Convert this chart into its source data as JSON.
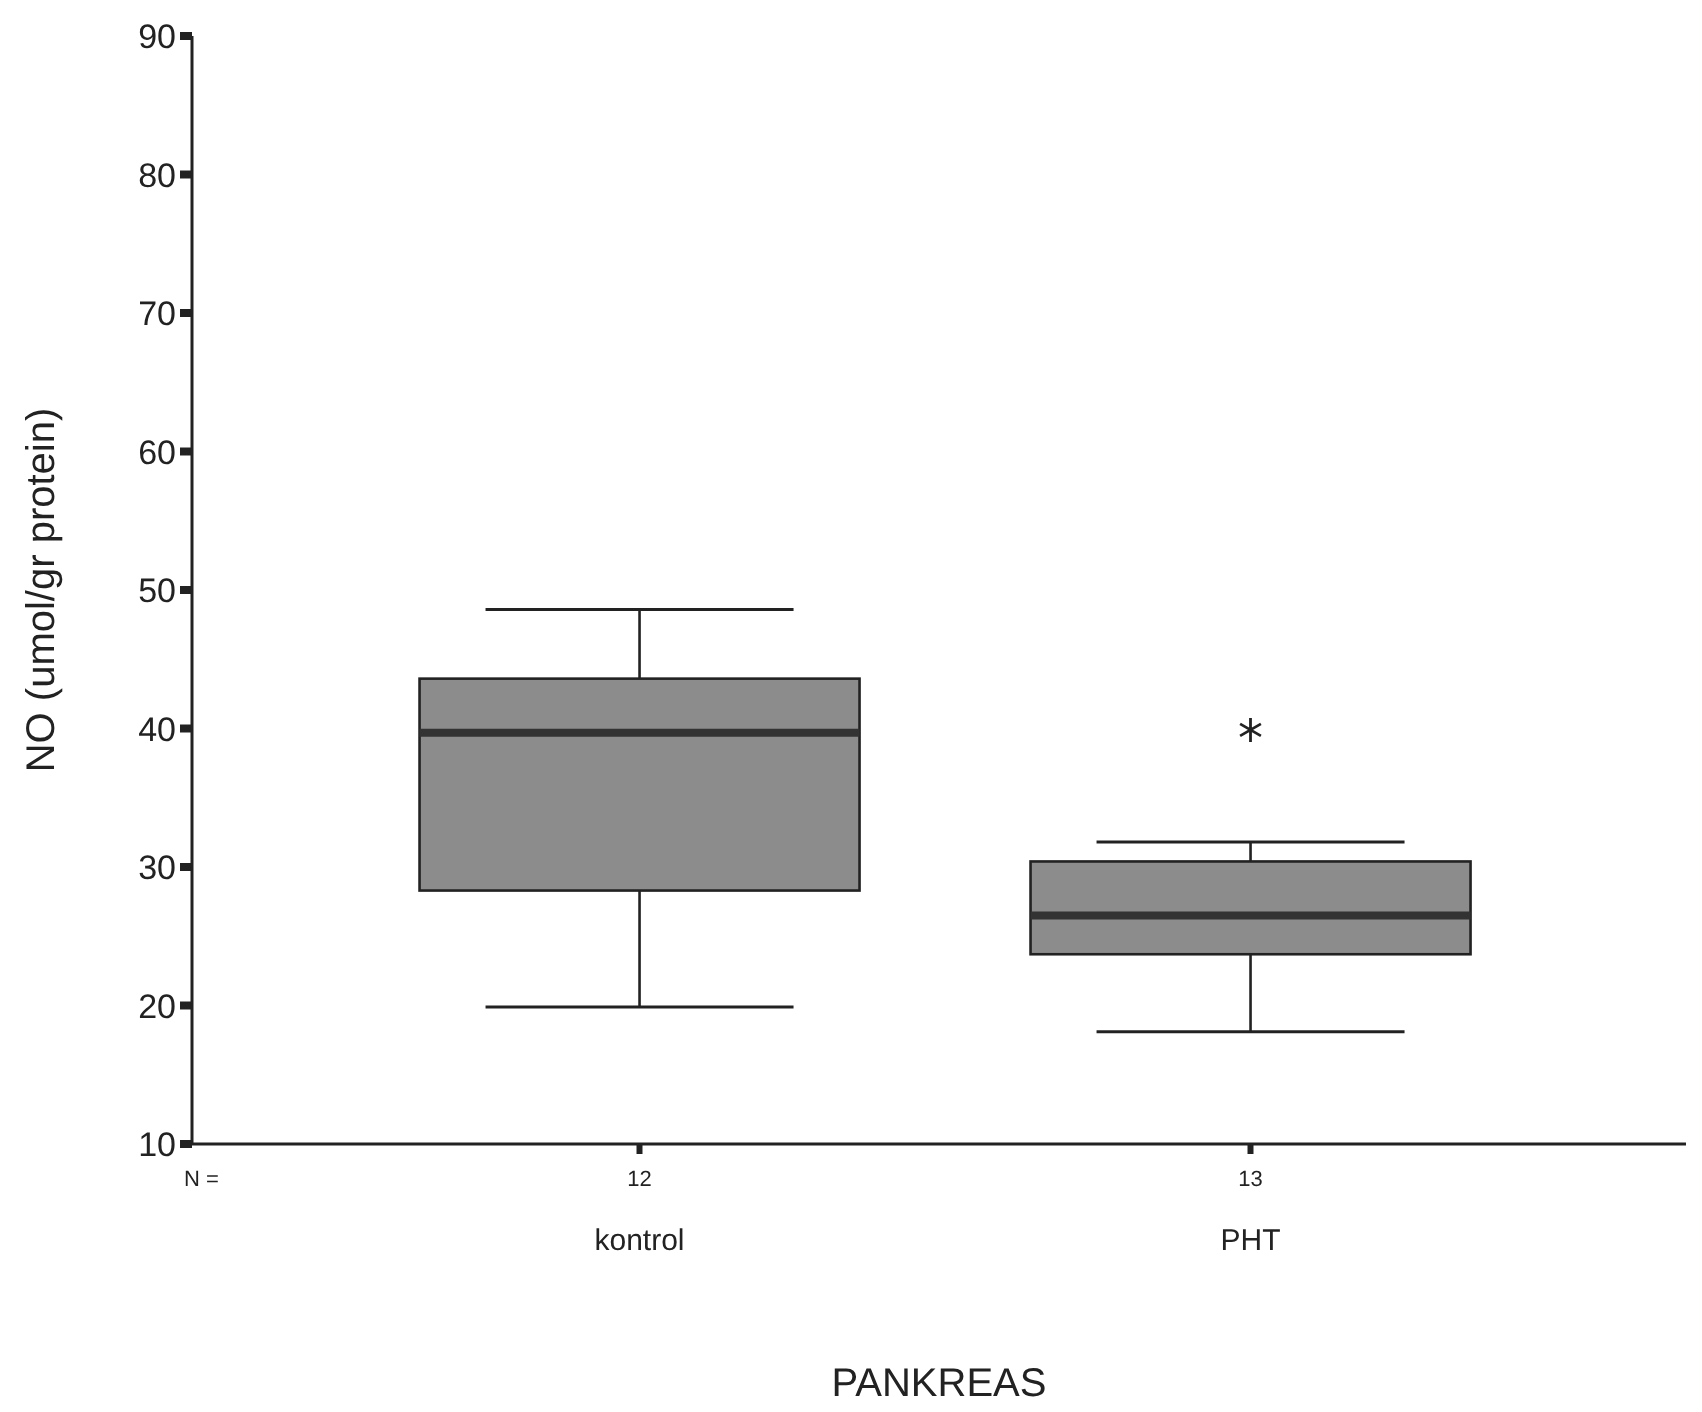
{
  "chart_data": {
    "type": "box",
    "categories": [
      "kontrol",
      "PHT"
    ],
    "xlabel": "PANKREAS",
    "ylabel": "NO (umol/gr protein)",
    "ylim": [
      10,
      90
    ],
    "yticks": [
      10,
      20,
      30,
      40,
      50,
      60,
      70,
      80,
      90
    ],
    "color": "#8c8c8c",
    "grid": false,
    "legend": false,
    "boxes": [
      {
        "low": 19.9,
        "q1": 28.3,
        "median": 39.7,
        "q3": 43.6,
        "high": 48.6
      },
      {
        "low": 18.1,
        "q1": 23.7,
        "median": 26.5,
        "q3": 30.4,
        "high": 31.8,
        "outliers": [
          39.9
        ]
      }
    ],
    "annotations": [
      "N =",
      {
        "text": "12",
        "x": "kontrol"
      },
      {
        "text": "13",
        "x": "PHT"
      }
    ]
  }
}
